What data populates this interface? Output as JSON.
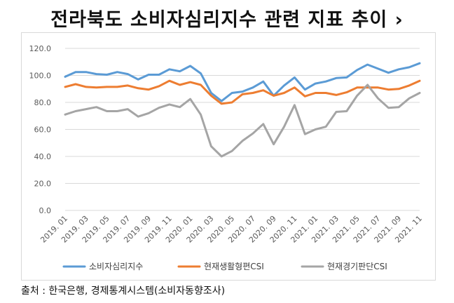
{
  "title": "전라북도 소비자심리지수 관련 지표 추이 ›",
  "source": "출처 : 한국은행, 경제통계시스템(소비자동향조사)",
  "chart_data": {
    "type": "line",
    "ylim": [
      0,
      120
    ],
    "yticks": [
      "0.0",
      "20.0",
      "40.0",
      "60.0",
      "80.0",
      "100.0",
      "120.0"
    ],
    "yticks_values": [
      0,
      20,
      40,
      60,
      80,
      100,
      120
    ],
    "xtick_labels": [
      "2019. 01",
      "2019. 03",
      "2019. 05",
      "2019. 07",
      "2019. 09",
      "2019. 11",
      "2020. 01",
      "2020. 03",
      "2020. 05",
      "2020. 07",
      "2020. 09",
      "2020. 11",
      "2021. 01",
      "2021. 03",
      "2021. 05",
      "2021. 07",
      "2021. 09",
      "2021. 11"
    ],
    "grid": true,
    "legend_position": "bottom",
    "series": [
      {
        "name": "소비자심리지수",
        "color": "#5b9bd5",
        "values": [
          99,
          102.5,
          102.5,
          101,
          100.5,
          102.5,
          101,
          97,
          100.5,
          100.5,
          104.5,
          103,
          107,
          101.5,
          87,
          81,
          87,
          88,
          91,
          95.5,
          85,
          92.5,
          98.5,
          89.5,
          94,
          95.5,
          98,
          98.5,
          104,
          108,
          105,
          102,
          104.5,
          106,
          109
        ]
      },
      {
        "name": "현재생활형편CSI",
        "color": "#ed7d31",
        "values": [
          91.5,
          93.5,
          91.5,
          91,
          91.5,
          91.5,
          92.5,
          90.5,
          89.5,
          92,
          96,
          93,
          95,
          93,
          85,
          79,
          80,
          86,
          87,
          89,
          85,
          87,
          91,
          84.5,
          87,
          87,
          85.5,
          87.5,
          91,
          91,
          91,
          89.5,
          90,
          92.5,
          96
        ]
      },
      {
        "name": "현재경기판단CSI",
        "color": "#a5a5a5",
        "values": [
          71,
          73.5,
          75,
          76.5,
          73.5,
          73.5,
          75,
          69.5,
          72,
          76,
          78.5,
          76.5,
          82.5,
          71,
          47.5,
          40,
          44,
          51.5,
          57,
          64,
          49,
          62,
          78,
          56.5,
          60,
          62,
          73,
          73.5,
          85,
          93,
          83,
          76,
          76.5,
          83,
          87
        ]
      }
    ]
  }
}
